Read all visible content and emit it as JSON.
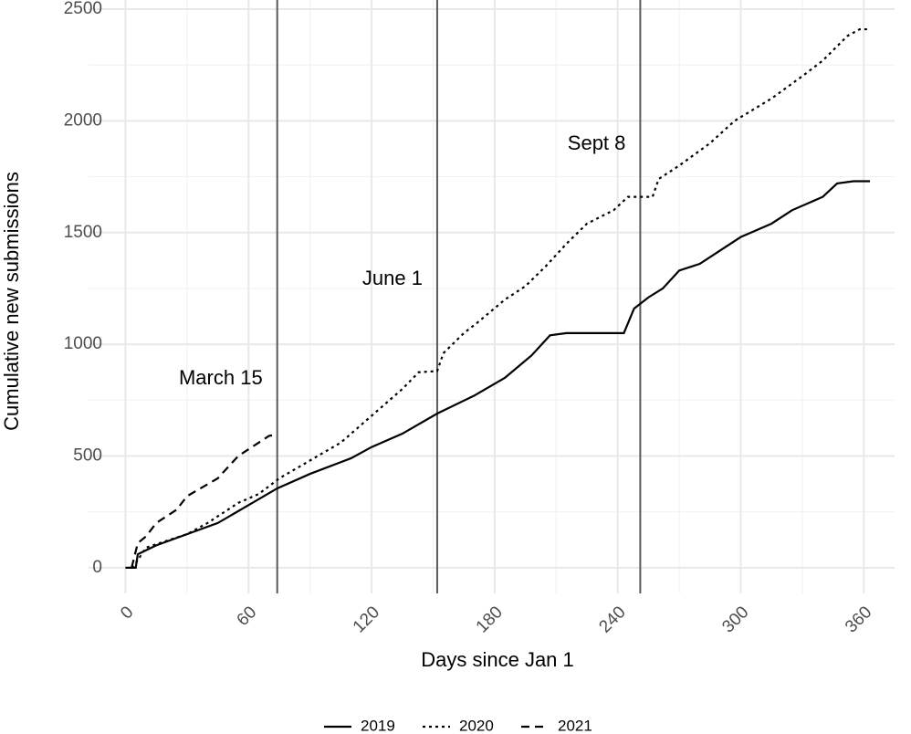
{
  "chart_data": {
    "type": "line",
    "x_label": "Days since Jan 1",
    "y_label": "Cumulative new submissions",
    "xlim": [
      -18,
      375
    ],
    "ylim": [
      -115,
      2541
    ],
    "xticks": [
      0,
      60,
      120,
      180,
      240,
      300,
      360
    ],
    "yticks": [
      0,
      500,
      1000,
      1500,
      2000,
      2500
    ],
    "grid": true,
    "legend": "bottom",
    "vlines": [
      {
        "x": 74,
        "label": "March 15"
      },
      {
        "x": 152,
        "label": "June 1"
      },
      {
        "x": 251,
        "label": "Sept 8"
      }
    ],
    "series": [
      {
        "name": "2019",
        "color": "#000000",
        "dash": "solid",
        "x": [
          0,
          5,
          6,
          15,
          30,
          45,
          60,
          74,
          90,
          110,
          120,
          135,
          152,
          170,
          185,
          198,
          207,
          215,
          243,
          248,
          255,
          262,
          270,
          280,
          290,
          300,
          315,
          325,
          340,
          347,
          355,
          363
        ],
        "values": [
          0,
          0,
          60,
          100,
          150,
          200,
          280,
          355,
          420,
          490,
          540,
          600,
          690,
          770,
          850,
          950,
          1040,
          1050,
          1050,
          1160,
          1210,
          1250,
          1330,
          1360,
          1420,
          1480,
          1540,
          1600,
          1660,
          1720,
          1730,
          1730
        ]
      },
      {
        "name": "2020",
        "color": "#000000",
        "dash": "dotted",
        "x": [
          3,
          5,
          10,
          30,
          40,
          55,
          65,
          75,
          90,
          105,
          115,
          125,
          135,
          143,
          152,
          155,
          165,
          172,
          185,
          195,
          205,
          215,
          225,
          238,
          245,
          257,
          260,
          270,
          285,
          297,
          315,
          330,
          340,
          352,
          358,
          363
        ],
        "values": [
          0,
          20,
          90,
          150,
          200,
          290,
          330,
          400,
          480,
          560,
          640,
          720,
          800,
          875,
          880,
          960,
          1050,
          1100,
          1200,
          1260,
          1350,
          1450,
          1540,
          1600,
          1660,
          1660,
          1740,
          1800,
          1900,
          2000,
          2100,
          2200,
          2270,
          2380,
          2410,
          2410
        ]
      },
      {
        "name": "2021",
        "color": "#000000",
        "dash": "dashed",
        "x": [
          3,
          6,
          10,
          15,
          25,
          30,
          45,
          55,
          65,
          70,
          73
        ],
        "values": [
          0,
          110,
          140,
          200,
          260,
          320,
          400,
          500,
          560,
          590,
          595
        ]
      }
    ]
  }
}
